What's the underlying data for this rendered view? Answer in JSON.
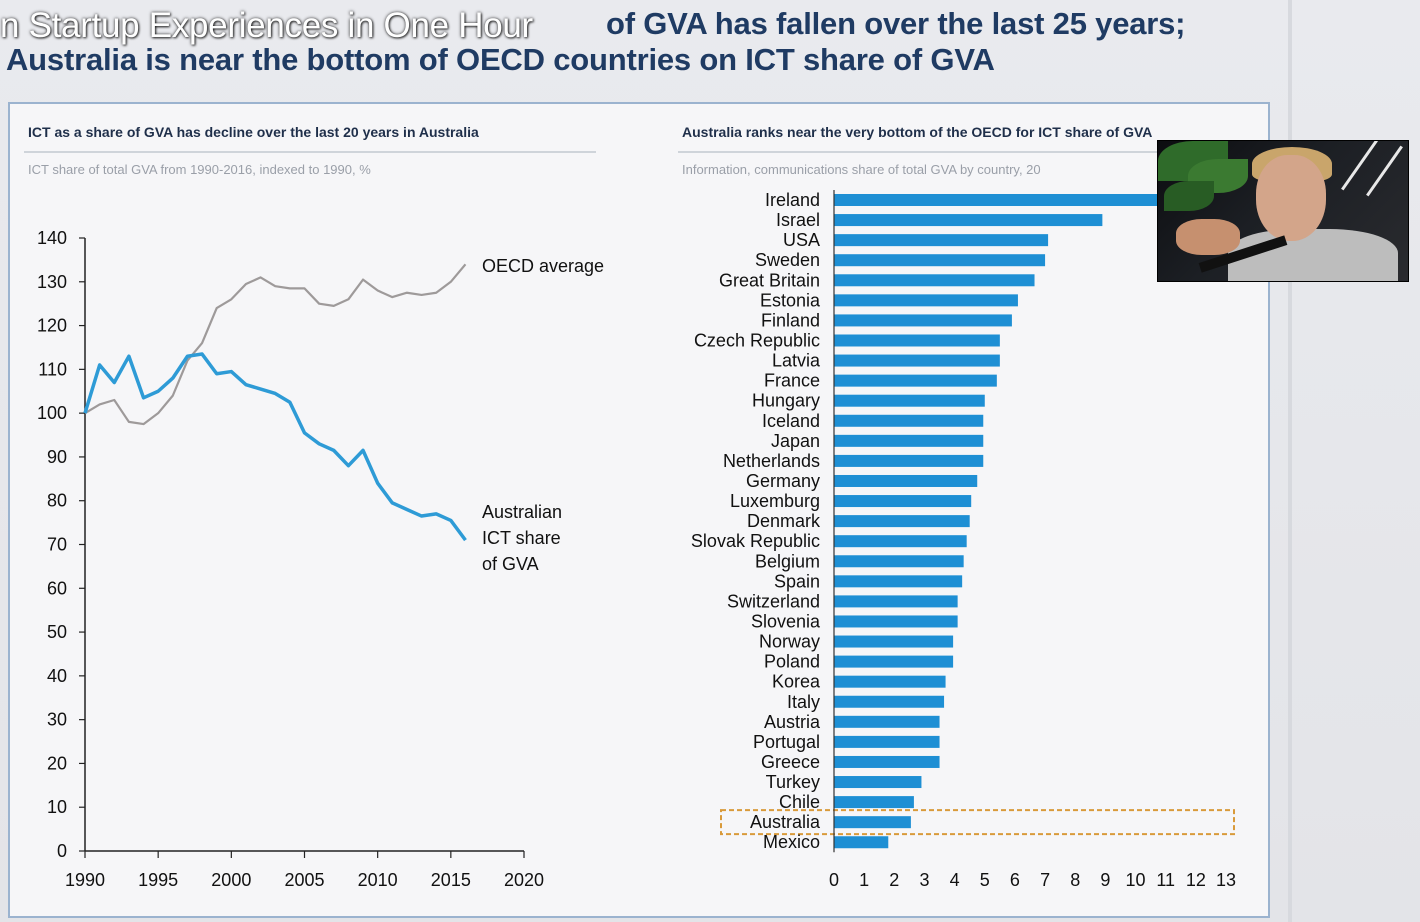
{
  "video": {
    "title_overlay": "n Startup Experiences in One Hour"
  },
  "slide": {
    "title_line1": "of GVA has fallen over the last 25 years;",
    "title_line2": "Australia is near the bottom of OECD countries on ICT share of GVA",
    "accent_color": "#2e9bd6",
    "title_color": "#1f3b63"
  },
  "chart_data": [
    {
      "type": "line",
      "title": "ICT as a share of GVA has decline over the last 20 years in Australia",
      "subtitle": "ICT share of total GVA from 1990-2016, indexed to 1990, %",
      "xlim": [
        1990,
        2020
      ],
      "ylim": [
        0,
        140
      ],
      "xticks": [
        "1990",
        "1995",
        "2000",
        "2005",
        "2010",
        "2015",
        "2020"
      ],
      "yticks": [
        "0",
        "10",
        "20",
        "30",
        "40",
        "50",
        "60",
        "70",
        "80",
        "90",
        "100",
        "110",
        "120",
        "130",
        "140"
      ],
      "x": [
        1990,
        1991,
        1992,
        1993,
        1994,
        1995,
        1996,
        1997,
        1998,
        1999,
        2000,
        2001,
        2002,
        2003,
        2004,
        2005,
        2006,
        2007,
        2008,
        2009,
        2010,
        2011,
        2012,
        2013,
        2014,
        2015,
        2016
      ],
      "series": [
        {
          "name": "OECD average",
          "label_lines": [
            "OECD average"
          ],
          "color": "#9e9a9a",
          "values": [
            100,
            102,
            103,
            98,
            97.5,
            100,
            104,
            112,
            116,
            124,
            126,
            129.5,
            131,
            129,
            128.5,
            128.5,
            125,
            124.5,
            126,
            130.5,
            128,
            126.5,
            127.5,
            127,
            127.5,
            130,
            134
          ]
        },
        {
          "name": "Australian ICT share of GVA",
          "label_lines": [
            "Australian",
            "ICT share",
            "of GVA"
          ],
          "color": "#2e9bd6",
          "values": [
            100,
            111,
            107,
            113,
            103.5,
            105,
            108,
            113,
            113.5,
            109,
            109.5,
            106.5,
            105.5,
            104.5,
            102.5,
            95.5,
            93,
            91.5,
            88,
            91.5,
            84,
            79.5,
            78,
            76.5,
            77,
            75.5,
            71
          ]
        }
      ]
    },
    {
      "type": "bar",
      "orientation": "horizontal",
      "title": "Australia ranks near the very bottom of the OECD for ICT share of GVA",
      "subtitle": "Information, communications share of total GVA by country, 20",
      "xlim": [
        0,
        13
      ],
      "xticks": [
        "0",
        "1",
        "2",
        "3",
        "4",
        "5",
        "6",
        "7",
        "8",
        "9",
        "10",
        "11",
        "12",
        "13"
      ],
      "color": "#1e8fd4",
      "highlight": "Australia",
      "highlight_color": "#d99a3a",
      "categories": [
        "Ireland",
        "Israel",
        "USA",
        "Sweden",
        "Great Britain",
        "Estonia",
        "Finland",
        "Czech Republic",
        "Latvia",
        "France",
        "Hungary",
        "Iceland",
        "Japan",
        "Netherlands",
        "Germany",
        "Luxemburg",
        "Denmark",
        "Slovak Republic",
        "Belgium",
        "Spain",
        "Switzerland",
        "Slovenia",
        "Norway",
        "Poland",
        "Korea",
        "Italy",
        "Austria",
        "Portugal",
        "Greece",
        "Turkey",
        "Chile",
        "Australia",
        "Mexico"
      ],
      "values": [
        12.0,
        8.9,
        7.1,
        7.0,
        6.65,
        6.1,
        5.9,
        5.5,
        5.5,
        5.4,
        5.0,
        4.95,
        4.95,
        4.95,
        4.75,
        4.55,
        4.5,
        4.4,
        4.3,
        4.25,
        4.1,
        4.1,
        3.95,
        3.95,
        3.7,
        3.65,
        3.5,
        3.5,
        3.5,
        2.9,
        2.65,
        2.55,
        1.8
      ]
    }
  ]
}
